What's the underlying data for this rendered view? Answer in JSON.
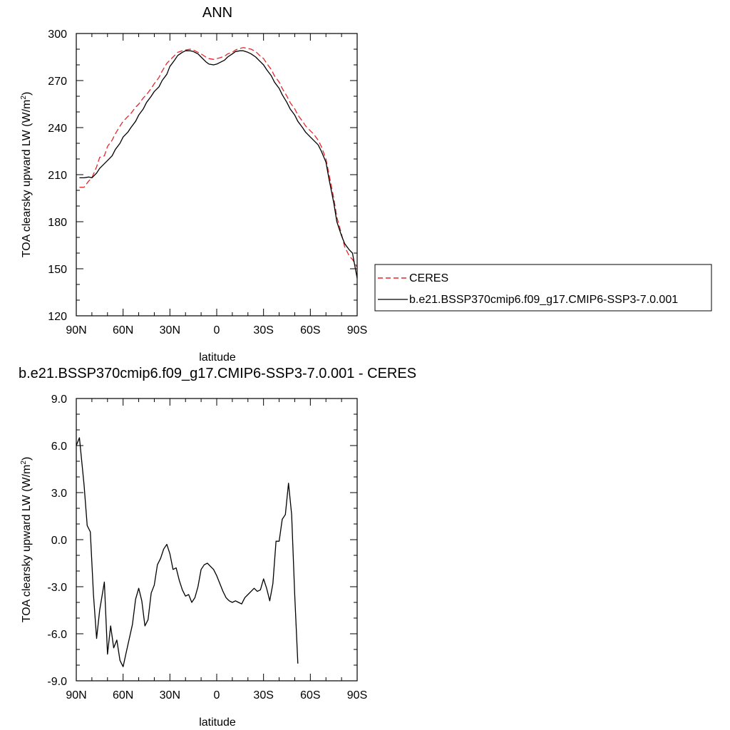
{
  "chart_data": [
    {
      "type": "line",
      "title": "ANN",
      "xlabel": "latitude",
      "ylabel": "TOA clearsky upward LW (W/m²)",
      "ylabel_main": "TOA clearsky upward LW (W/m",
      "ylabel_sup": "2",
      "ylabel_close": ")",
      "xlim": [
        90,
        -90
      ],
      "ylim": [
        120,
        300
      ],
      "xticks": [
        {
          "value": 90,
          "label": "90N"
        },
        {
          "value": 60,
          "label": "60N"
        },
        {
          "value": 30,
          "label": "30N"
        },
        {
          "value": 0,
          "label": "0"
        },
        {
          "value": -30,
          "label": "30S"
        },
        {
          "value": -60,
          "label": "60S"
        },
        {
          "value": -90,
          "label": "90S"
        }
      ],
      "yticks": [
        {
          "value": 120,
          "label": "120"
        },
        {
          "value": 150,
          "label": "150"
        },
        {
          "value": 180,
          "label": "180"
        },
        {
          "value": 210,
          "label": "210"
        },
        {
          "value": 240,
          "label": "240"
        },
        {
          "value": 270,
          "label": "270"
        },
        {
          "value": 300,
          "label": "300"
        }
      ],
      "legend_position": "right",
      "series": [
        {
          "name": "CERES",
          "color": "#e8262b",
          "dash": "dashed",
          "points": [
            [
              88,
              202
            ],
            [
              85,
              202
            ],
            [
              82,
              206
            ],
            [
              80,
              208
            ],
            [
              77,
              215
            ],
            [
              75,
              221
            ],
            [
              72,
              222
            ],
            [
              70,
              228
            ],
            [
              67,
              232
            ],
            [
              65,
              236
            ],
            [
              62,
              241
            ],
            [
              60,
              244
            ],
            [
              57,
              247
            ],
            [
              55,
              249
            ],
            [
              52,
              253
            ],
            [
              50,
              255
            ],
            [
              47,
              259
            ],
            [
              45,
              261
            ],
            [
              42,
              265
            ],
            [
              40,
              268
            ],
            [
              37,
              272
            ],
            [
              35,
              276
            ],
            [
              32,
              281
            ],
            [
              30,
              283
            ],
            [
              27,
              286
            ],
            [
              25,
              288
            ],
            [
              22,
              289
            ],
            [
              20,
              289.5
            ],
            [
              17,
              290
            ],
            [
              15,
              289.5
            ],
            [
              12,
              288
            ],
            [
              10,
              287
            ],
            [
              7,
              285
            ],
            [
              5,
              284
            ],
            [
              2,
              283.5
            ],
            [
              0,
              284
            ],
            [
              -2,
              284.5
            ],
            [
              -5,
              285.5
            ],
            [
              -7,
              287
            ],
            [
              -10,
              288
            ],
            [
              -12,
              289.5
            ],
            [
              -15,
              290.5
            ],
            [
              -17,
              291
            ],
            [
              -20,
              290.5
            ],
            [
              -22,
              290
            ],
            [
              -25,
              288.5
            ],
            [
              -27,
              286.5
            ],
            [
              -30,
              284
            ],
            [
              -32,
              281
            ],
            [
              -35,
              277
            ],
            [
              -37,
              273
            ],
            [
              -40,
              269
            ],
            [
              -42,
              265
            ],
            [
              -45,
              260
            ],
            [
              -47,
              256
            ],
            [
              -50,
              252
            ],
            [
              -52,
              248
            ],
            [
              -55,
              244
            ],
            [
              -57,
              241
            ],
            [
              -60,
              238
            ],
            [
              -62,
              236
            ],
            [
              -65,
              232
            ],
            [
              -67,
              228
            ],
            [
              -70,
              220
            ],
            [
              -72,
              210
            ],
            [
              -75,
              195
            ],
            [
              -77,
              183
            ],
            [
              -80,
              172
            ],
            [
              -82,
              164
            ],
            [
              -85,
              158
            ],
            [
              -87,
              156
            ],
            [
              -90,
              151
            ]
          ]
        },
        {
          "name": "b.e21.BSSP370cmip6.f09_g17.CMIP6-SSP3-7.0.001",
          "color": "#000000",
          "dash": "solid",
          "points": [
            [
              88,
              208
            ],
            [
              85,
              208
            ],
            [
              82,
              208.5
            ],
            [
              80,
              208
            ],
            [
              77,
              211
            ],
            [
              75,
              214
            ],
            [
              72,
              217
            ],
            [
              70,
              219
            ],
            [
              67,
              222
            ],
            [
              65,
              226
            ],
            [
              62,
              230
            ],
            [
              60,
              234
            ],
            [
              57,
              237
            ],
            [
              55,
              240
            ],
            [
              52,
              244
            ],
            [
              50,
              248
            ],
            [
              47,
              252
            ],
            [
              45,
              256
            ],
            [
              42,
              260
            ],
            [
              40,
              263
            ],
            [
              37,
              266
            ],
            [
              35,
              270
            ],
            [
              32,
              274
            ],
            [
              30,
              279
            ],
            [
              27,
              283
            ],
            [
              25,
              286
            ],
            [
              22,
              288
            ],
            [
              20,
              289
            ],
            [
              17,
              289
            ],
            [
              15,
              288.5
            ],
            [
              12,
              287
            ],
            [
              10,
              285
            ],
            [
              7,
              282
            ],
            [
              5,
              280.5
            ],
            [
              2,
              280
            ],
            [
              0,
              280.5
            ],
            [
              -2,
              281.5
            ],
            [
              -5,
              283
            ],
            [
              -7,
              285
            ],
            [
              -10,
              287
            ],
            [
              -12,
              288.5
            ],
            [
              -15,
              289
            ],
            [
              -17,
              289
            ],
            [
              -20,
              288
            ],
            [
              -22,
              287
            ],
            [
              -25,
              285
            ],
            [
              -27,
              283
            ],
            [
              -30,
              280
            ],
            [
              -32,
              277
            ],
            [
              -35,
              273
            ],
            [
              -37,
              269
            ],
            [
              -40,
              265
            ],
            [
              -42,
              261
            ],
            [
              -45,
              256
            ],
            [
              -47,
              252
            ],
            [
              -50,
              248
            ],
            [
              -52,
              244
            ],
            [
              -55,
              240
            ],
            [
              -57,
              237
            ],
            [
              -60,
              234
            ],
            [
              -62,
              232
            ],
            [
              -65,
              229
            ],
            [
              -67,
              225
            ],
            [
              -70,
              218
            ],
            [
              -72,
              207
            ],
            [
              -75,
              192
            ],
            [
              -77,
              180
            ],
            [
              -80,
              171
            ],
            [
              -82,
              166
            ],
            [
              -85,
              162
            ],
            [
              -87,
              160
            ],
            [
              -90,
              144
            ]
          ]
        }
      ]
    },
    {
      "type": "line",
      "title": "b.e21.BSSP370cmip6.f09_g17.CMIP6-SSP3-7.0.001 - CERES",
      "xlabel": "latitude",
      "ylabel": "TOA clearsky upward LW (W/m²)",
      "ylabel_main": "TOA clearsky upward LW (W/m",
      "ylabel_sup": "2",
      "ylabel_close": ")",
      "xlim": [
        90,
        -90
      ],
      "ylim": [
        -9,
        9
      ],
      "xticks": [
        {
          "value": 90,
          "label": "90N"
        },
        {
          "value": 60,
          "label": "60N"
        },
        {
          "value": 30,
          "label": "30N"
        },
        {
          "value": 0,
          "label": "0"
        },
        {
          "value": -30,
          "label": "30S"
        },
        {
          "value": -60,
          "label": "60S"
        },
        {
          "value": -90,
          "label": "90S"
        }
      ],
      "yticks": [
        {
          "value": -9,
          "label": "-9.0"
        },
        {
          "value": -6,
          "label": "-6.0"
        },
        {
          "value": -3,
          "label": "-3.0"
        },
        {
          "value": 0,
          "label": "0.0"
        },
        {
          "value": 3,
          "label": "3.0"
        },
        {
          "value": 6,
          "label": "6.0"
        },
        {
          "value": 9,
          "label": "9.0"
        }
      ],
      "series": [
        {
          "color": "#000000",
          "dash": "solid",
          "points": [
            [
              90,
              6.0
            ],
            [
              88,
              6.5
            ],
            [
              85,
              3.5
            ],
            [
              83,
              0.9
            ],
            [
              81,
              0.5
            ],
            [
              79,
              -3.5
            ],
            [
              77,
              -6.3
            ],
            [
              75,
              -4.5
            ],
            [
              72,
              -2.7
            ],
            [
              70,
              -7.3
            ],
            [
              68,
              -5.5
            ],
            [
              66,
              -6.9
            ],
            [
              64,
              -6.4
            ],
            [
              62,
              -7.7
            ],
            [
              60,
              -8.1
            ],
            [
              58,
              -7.2
            ],
            [
              56,
              -6.3
            ],
            [
              54,
              -5.4
            ],
            [
              52,
              -3.8
            ],
            [
              50,
              -3.1
            ],
            [
              48,
              -3.9
            ],
            [
              46,
              -5.5
            ],
            [
              44,
              -5.1
            ],
            [
              42,
              -3.4
            ],
            [
              40,
              -2.9
            ],
            [
              38,
              -1.6
            ],
            [
              36,
              -1.2
            ],
            [
              34,
              -0.6
            ],
            [
              32,
              -0.3
            ],
            [
              30,
              -0.9
            ],
            [
              28,
              -1.9
            ],
            [
              26,
              -1.8
            ],
            [
              24,
              -2.6
            ],
            [
              22,
              -3.2
            ],
            [
              20,
              -3.6
            ],
            [
              18,
              -3.5
            ],
            [
              16,
              -4.0
            ],
            [
              14,
              -3.7
            ],
            [
              12,
              -3.0
            ],
            [
              10,
              -1.9
            ],
            [
              8,
              -1.6
            ],
            [
              6,
              -1.5
            ],
            [
              4,
              -1.7
            ],
            [
              2,
              -1.9
            ],
            [
              0,
              -2.3
            ],
            [
              -2,
              -2.8
            ],
            [
              -4,
              -3.3
            ],
            [
              -6,
              -3.7
            ],
            [
              -8,
              -3.9
            ],
            [
              -10,
              -4.0
            ],
            [
              -12,
              -3.9
            ],
            [
              -14,
              -4.0
            ],
            [
              -16,
              -4.1
            ],
            [
              -18,
              -3.7
            ],
            [
              -20,
              -3.5
            ],
            [
              -22,
              -3.3
            ],
            [
              -24,
              -3.1
            ],
            [
              -26,
              -3.3
            ],
            [
              -28,
              -3.2
            ],
            [
              -30,
              -2.5
            ],
            [
              -32,
              -3.1
            ],
            [
              -34,
              -3.9
            ],
            [
              -36,
              -2.8
            ],
            [
              -38,
              -0.1
            ],
            [
              -40,
              -0.1
            ],
            [
              -42,
              1.3
            ],
            [
              -44,
              1.6
            ],
            [
              -46,
              3.6
            ],
            [
              -48,
              1.6
            ],
            [
              -50,
              -3.5
            ],
            [
              -52,
              -7.9
            ]
          ]
        }
      ]
    }
  ],
  "legend": {
    "items": [
      {
        "label": "CERES",
        "color": "#e8262b",
        "dash": "dashed"
      },
      {
        "label": "b.e21.BSSP370cmip6.f09_g17.CMIP6-SSP3-7.0.001",
        "color": "#000000",
        "dash": "solid"
      }
    ]
  }
}
